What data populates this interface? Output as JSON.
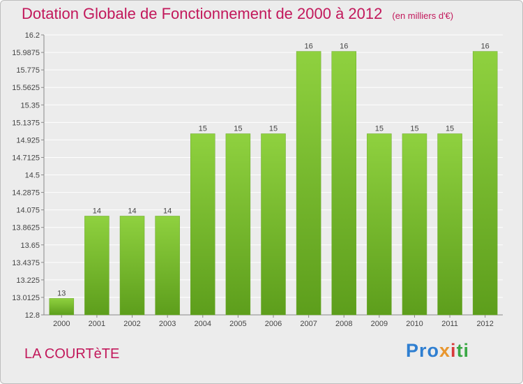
{
  "chart_data": {
    "type": "bar",
    "title": "Dotation Globale de Fonctionnement de 2000 à 2012",
    "subtitle": "(en milliers d'€)",
    "categories": [
      "2000",
      "2001",
      "2002",
      "2003",
      "2004",
      "2005",
      "2006",
      "2007",
      "2008",
      "2009",
      "2010",
      "2011",
      "2012"
    ],
    "values": [
      13,
      14,
      14,
      14,
      15,
      15,
      15,
      16,
      16,
      15,
      15,
      15,
      16
    ],
    "ylim": [
      12.8,
      16.2
    ],
    "yticks": [
      "12.8",
      "13.0125",
      "13.225",
      "13.4375",
      "13.65",
      "13.8625",
      "14.075",
      "14.2875",
      "14.5",
      "14.7125",
      "14.925",
      "15.1375",
      "15.35",
      "15.5625",
      "15.775",
      "15.9875",
      "16.2"
    ],
    "grid": true,
    "bar_color": "#7cc432",
    "bar_color_dark": "#5b9d1a"
  },
  "footer": {
    "commune": "LA COURTèTE",
    "logo": [
      "Pro",
      "x",
      "i",
      "ti"
    ]
  }
}
